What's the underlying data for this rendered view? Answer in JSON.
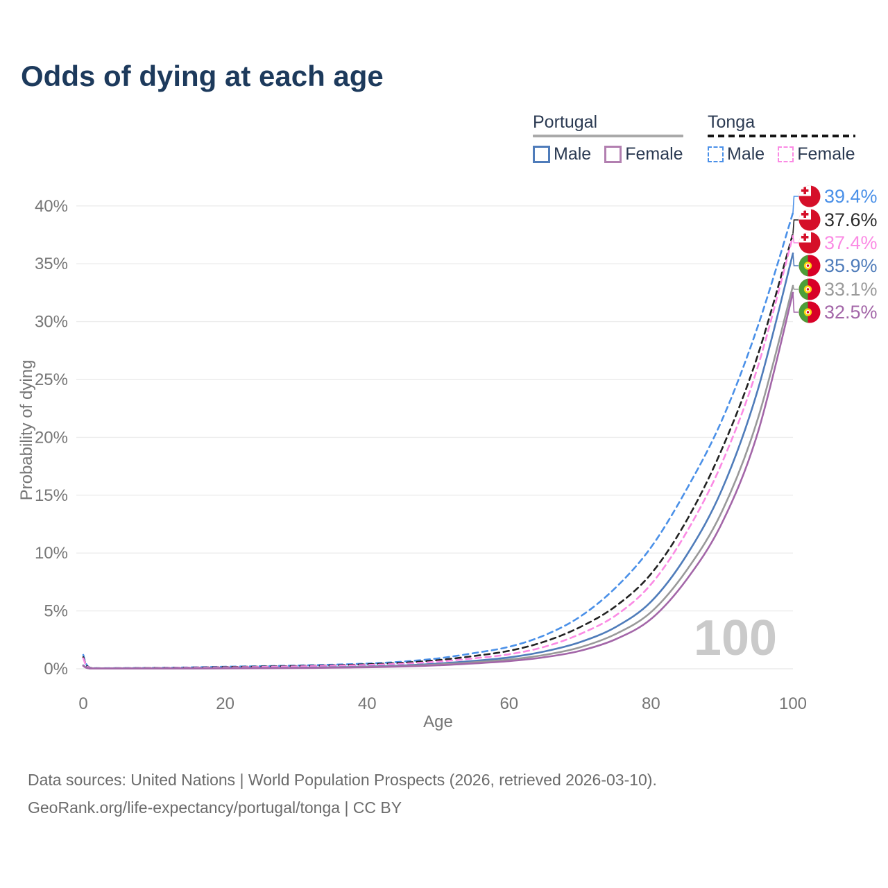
{
  "title": "Odds of dying at each age",
  "legend": {
    "groups": [
      {
        "name": "Portugal",
        "line_style": "solid",
        "underline_color": "#a9a9a9",
        "items": [
          {
            "label": "Male",
            "color": "#4f7cba",
            "dashed": false
          },
          {
            "label": "Female",
            "color": "#b27fb0",
            "dashed": false
          }
        ]
      },
      {
        "name": "Tonga",
        "line_style": "dashed",
        "underline_color": "#141414",
        "items": [
          {
            "label": "Male",
            "color": "#4a90e8",
            "dashed": true
          },
          {
            "label": "Female",
            "color": "#fb8ae4",
            "dashed": true
          }
        ]
      }
    ]
  },
  "chart_data": {
    "type": "line",
    "title": "Odds of dying at each age",
    "xlabel": "Age",
    "ylabel": "Probability of dying",
    "x_ticks": [
      0,
      20,
      40,
      60,
      80,
      100
    ],
    "y_ticks": [
      "0%",
      "5%",
      "10%",
      "15%",
      "20%",
      "25%",
      "30%",
      "35%",
      "40%"
    ],
    "xlim": [
      0,
      100
    ],
    "ylim": [
      0,
      41
    ],
    "grid": "horizontal",
    "legend_position": "top-right",
    "watermark": "100",
    "ages": [
      0,
      1,
      5,
      10,
      15,
      20,
      25,
      30,
      35,
      40,
      45,
      50,
      55,
      60,
      65,
      70,
      75,
      80,
      85,
      90,
      95,
      100
    ],
    "series": [
      {
        "name": "Tonga Male",
        "country": "tonga",
        "sex": "male",
        "color": "#4a90e8",
        "dashed": true,
        "values": [
          1.2,
          0.08,
          0.06,
          0.08,
          0.12,
          0.18,
          0.22,
          0.28,
          0.35,
          0.45,
          0.62,
          0.9,
          1.35,
          1.9,
          2.9,
          4.5,
          7.0,
          10.5,
          15.5,
          21.5,
          29.5,
          39.4
        ],
        "end_label": "39.4%",
        "end_label_color": "#4a90e8"
      },
      {
        "name": "Tonga Both sexes",
        "country": "tonga",
        "sex": "both",
        "color": "#222222",
        "dashed": true,
        "values": [
          1.0,
          0.07,
          0.05,
          0.07,
          0.1,
          0.15,
          0.19,
          0.24,
          0.3,
          0.39,
          0.52,
          0.75,
          1.1,
          1.55,
          2.35,
          3.6,
          5.4,
          8.2,
          12.8,
          19.0,
          27.0,
          37.6
        ],
        "end_label": "37.6%",
        "end_label_color": "#2b2b2b"
      },
      {
        "name": "Tonga Female",
        "country": "tonga",
        "sex": "female",
        "color": "#fb8ae4",
        "dashed": true,
        "values": [
          0.9,
          0.06,
          0.05,
          0.06,
          0.09,
          0.12,
          0.16,
          0.2,
          0.26,
          0.33,
          0.44,
          0.62,
          0.9,
          1.25,
          1.9,
          3.0,
          4.6,
          7.3,
          11.8,
          17.8,
          26.0,
          37.4
        ],
        "end_label": "37.4%",
        "end_label_color": "#fb8ae4"
      },
      {
        "name": "Portugal Male",
        "country": "portugal",
        "sex": "male",
        "color": "#4f7cba",
        "dashed": false,
        "values": [
          0.3,
          0.03,
          0.01,
          0.012,
          0.035,
          0.06,
          0.07,
          0.09,
          0.13,
          0.19,
          0.29,
          0.45,
          0.68,
          0.98,
          1.5,
          2.3,
          3.6,
          5.8,
          9.8,
          15.5,
          24.0,
          35.9
        ],
        "end_label": "35.9%",
        "end_label_color": "#4f7cba"
      },
      {
        "name": "Portugal Both sexes",
        "country": "portugal",
        "sex": "both",
        "color": "#999999",
        "dashed": false,
        "values": [
          0.28,
          0.025,
          0.009,
          0.01,
          0.03,
          0.05,
          0.06,
          0.075,
          0.11,
          0.16,
          0.24,
          0.37,
          0.56,
          0.8,
          1.2,
          1.85,
          3.0,
          4.9,
          8.5,
          13.6,
          21.5,
          33.1
        ],
        "end_label": "33.1%",
        "end_label_color": "#9a9a9a"
      },
      {
        "name": "Portugal Female",
        "country": "portugal",
        "sex": "female",
        "color": "#a366a8",
        "dashed": false,
        "values": [
          0.25,
          0.02,
          0.008,
          0.009,
          0.022,
          0.035,
          0.045,
          0.06,
          0.09,
          0.13,
          0.2,
          0.3,
          0.46,
          0.66,
          1.0,
          1.55,
          2.55,
          4.3,
          7.7,
          12.6,
          20.3,
          32.5
        ],
        "end_label": "32.5%",
        "end_label_color": "#a366a8"
      }
    ],
    "flag_colors": {
      "tonga_red": "#d50f29",
      "portugal_green": "#4c9f38",
      "portugal_red": "#d80027",
      "portugal_emblem_yellow": "#ffd40c"
    }
  },
  "footer": {
    "line1": "Data sources: United Nations | World Population Prospects (2026, retrieved 2026-03-10).",
    "line2": "GeoRank.org/life-expectancy/portugal/tonga | CC BY"
  }
}
